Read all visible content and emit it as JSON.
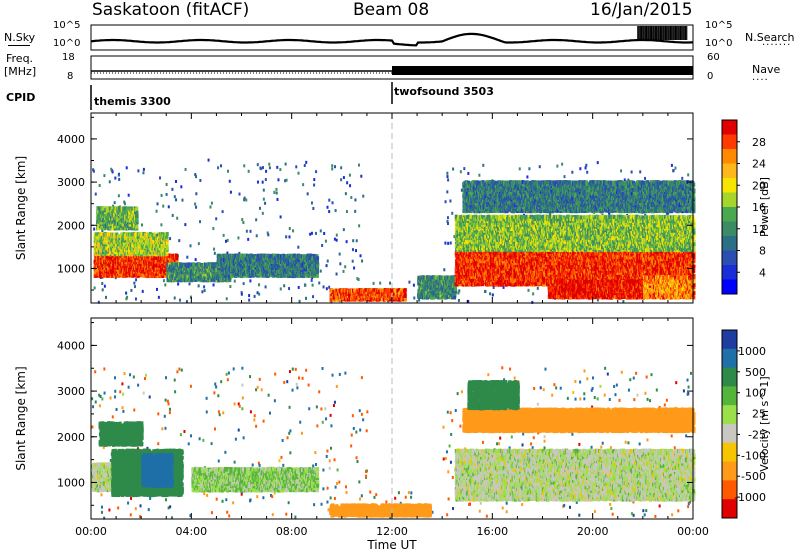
{
  "header": {
    "station": "Saskatoon (fitACF)",
    "beam": "Beam 08",
    "date": "16/Jan/2015"
  },
  "top_panels": {
    "nsky_label": "N.Sky",
    "nsearch_label": "N.Search",
    "nsky_ticks": [
      "10^5",
      "10^0"
    ],
    "nsky_ticks_right": [
      "10^5",
      "10^0"
    ],
    "freq_label_1": "Freq.",
    "freq_label_2": "[MHz]",
    "freq_ticks": [
      "18",
      "8"
    ],
    "nave_label": "Nave",
    "nave_ticks": [
      "60",
      "0"
    ],
    "cpid_label": "CPID",
    "cpid_segments": [
      "themis 3300",
      "twofsound 3503"
    ]
  },
  "power_colorbar": {
    "label": "Power [dB]",
    "ticks": [
      "28",
      "24",
      "20",
      "16",
      "12",
      "8",
      "4"
    ],
    "colors": [
      "#e10000",
      "#ff3a00",
      "#ff8a00",
      "#ffb81a",
      "#f7e400",
      "#a6d62a",
      "#4aa84f",
      "#3c8a66",
      "#2a6f86",
      "#2b4fb0",
      "#1a2ed8",
      "#0000ff"
    ]
  },
  "velocity_colorbar": {
    "label": "Velocity [m s^-1]",
    "ticks": [
      "1000",
      "500",
      "100",
      "25",
      "-25",
      "-100",
      "-500",
      "-1000"
    ],
    "colors": [
      "#1f3d9e",
      "#1f6fa8",
      "#2f8a4a",
      "#55b53b",
      "#9be04a",
      "#c8c8c0",
      "#f7c400",
      "#ff9a1a",
      "#ff5a00",
      "#e00000"
    ]
  },
  "chart_data": [
    {
      "type": "heatmap",
      "title": "Power [dB]",
      "xlabel": "",
      "ylabel": "Slant Range [km]",
      "x_ticks": [
        "00:00",
        "04:00",
        "08:00",
        "12:00",
        "16:00",
        "20:00",
        "00:00"
      ],
      "y_ticks": [
        "1000",
        "2000",
        "3000",
        "4000"
      ],
      "ylim": [
        200,
        4600
      ],
      "xlim_hours": [
        0,
        24
      ],
      "regions": [
        {
          "x0": 0.1,
          "x1": 3.4,
          "y0": 800,
          "y1": 1300,
          "level": 0.95
        },
        {
          "x0": 0.1,
          "x1": 3.0,
          "y0": 1300,
          "y1": 1800,
          "level": 0.55
        },
        {
          "x0": 0.2,
          "x1": 1.8,
          "y0": 1900,
          "y1": 2400,
          "level": 0.45
        },
        {
          "x0": 3.0,
          "x1": 5.5,
          "y0": 700,
          "y1": 1100,
          "level": 0.35
        },
        {
          "x0": 5.0,
          "x1": 9.0,
          "y0": 800,
          "y1": 1300,
          "level": 0.3
        },
        {
          "x0": 9.5,
          "x1": 12.5,
          "y0": 250,
          "y1": 500,
          "level": 0.9
        },
        {
          "x0": 13.0,
          "x1": 14.5,
          "y0": 300,
          "y1": 800,
          "level": 0.35
        },
        {
          "x0": 14.5,
          "x1": 24.0,
          "y0": 600,
          "y1": 1400,
          "level": 0.95
        },
        {
          "x0": 14.5,
          "x1": 24.0,
          "y0": 1400,
          "y1": 2200,
          "level": 0.5
        },
        {
          "x0": 14.8,
          "x1": 24.0,
          "y0": 2300,
          "y1": 3000,
          "level": 0.3
        },
        {
          "x0": 18.2,
          "x1": 22.0,
          "y0": 300,
          "y1": 700,
          "level": 1.0
        },
        {
          "x0": 22.0,
          "x1": 24.0,
          "y0": 300,
          "y1": 800,
          "level": 0.8
        }
      ]
    },
    {
      "type": "heatmap",
      "title": "Velocity [m s^-1]",
      "xlabel": "Time UT",
      "ylabel": "Slant Range [km]",
      "x_ticks": [
        "00:00",
        "04:00",
        "08:00",
        "12:00",
        "16:00",
        "20:00",
        "00:00"
      ],
      "y_ticks": [
        "1000",
        "2000",
        "3000",
        "4000"
      ],
      "ylim": [
        200,
        4600
      ],
      "xlim_hours": [
        0,
        24
      ],
      "regions": [
        {
          "x0": 0.0,
          "x1": 3.5,
          "y0": 800,
          "y1": 1400,
          "vel": 0
        },
        {
          "x0": 0.8,
          "x1": 3.6,
          "y0": 700,
          "y1": 1700,
          "vel": 150
        },
        {
          "x0": 2.0,
          "x1": 3.2,
          "y0": 900,
          "y1": 1600,
          "vel": 400
        },
        {
          "x0": 0.3,
          "x1": 2.0,
          "y0": 1800,
          "y1": 2300,
          "vel": 200
        },
        {
          "x0": 4.0,
          "x1": 9.0,
          "y0": 800,
          "y1": 1300,
          "vel": 20
        },
        {
          "x0": 9.5,
          "x1": 13.5,
          "y0": 250,
          "y1": 500,
          "vel": -120
        },
        {
          "x0": 14.5,
          "x1": 24.0,
          "y0": 600,
          "y1": 1700,
          "vel": 0
        },
        {
          "x0": 14.8,
          "x1": 24.0,
          "y0": 2100,
          "y1": 2600,
          "vel": -150
        },
        {
          "x0": 15.0,
          "x1": 17.0,
          "y0": 2600,
          "y1": 3200,
          "vel": 120
        }
      ]
    }
  ]
}
